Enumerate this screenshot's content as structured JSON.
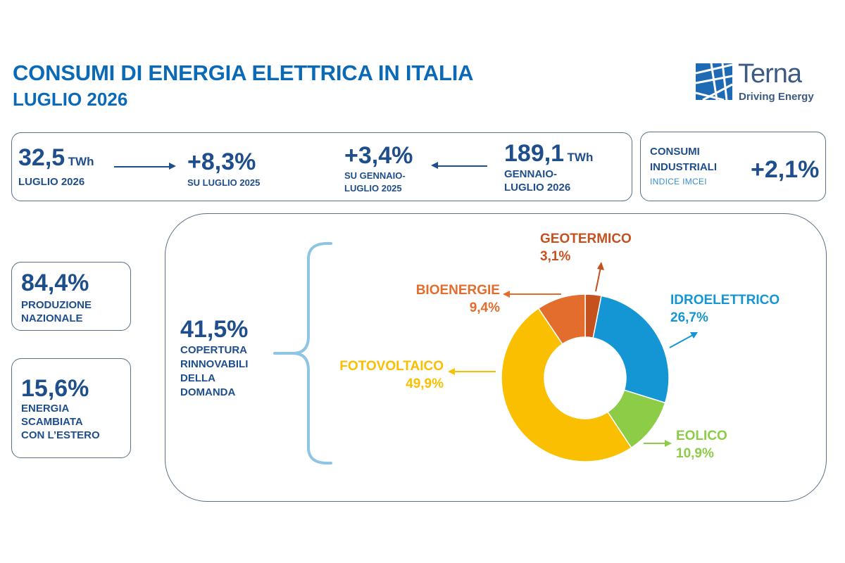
{
  "header": {
    "title": "CONSUMI DI ENERGIA ELETTRICA IN ITALIA",
    "subtitle": "LUGLIO 2026"
  },
  "logo": {
    "name": "Terna",
    "tagline": "Driving Energy",
    "color": "#3c5a82",
    "accent": "#1e6ab4"
  },
  "kpi_bar": {
    "monthly": {
      "value": "32,5",
      "unit": "TWh",
      "label": "LUGLIO 2026"
    },
    "monthly_change": {
      "value": "+8,3%",
      "label": "SU LUGLIO 2025"
    },
    "ytd_change": {
      "value": "+3,4%",
      "label_line1": "SU GENNAIO-",
      "label_line2": "LUGLIO 2025"
    },
    "ytd": {
      "value": "189,1",
      "unit": "TWh",
      "label_line1": "GENNAIO-",
      "label_line2": "LUGLIO 2026"
    }
  },
  "industrial": {
    "line1": "CONSUMI",
    "line2": "INDUSTRIALI",
    "index": "INDICE IMCEI",
    "value": "+2,1%"
  },
  "national_production": {
    "value": "84,4%",
    "line1": "PRODUZIONE",
    "line2": "NAZIONALE"
  },
  "foreign_exchange": {
    "value": "15,6%",
    "line1": "ENERGIA",
    "line2": "SCAMBIATA",
    "line3": "CON L’ESTERO"
  },
  "renewables": {
    "value": "41,5%",
    "line1": "COPERTURA",
    "line2": "RINNOVABILI",
    "line3": "DELLA",
    "line4": "DOMANDA"
  },
  "chart_data": {
    "type": "pie",
    "donut": true,
    "start_angle_deg": 0,
    "direction": "clockwise",
    "categories": [
      "GEOTERMICO",
      "IDROELETTRICO",
      "EOLICO",
      "FOTOVOLTAICO",
      "BIOENERGIE"
    ],
    "values": [
      3.1,
      26.7,
      10.9,
      49.9,
      9.4
    ],
    "labels": [
      "3,1%",
      "26,7%",
      "10,9%",
      "49,9%",
      "9,4%"
    ],
    "colors": [
      "#c5511f",
      "#1496d4",
      "#8ccc47",
      "#f9bf00",
      "#e26d2c"
    ]
  }
}
